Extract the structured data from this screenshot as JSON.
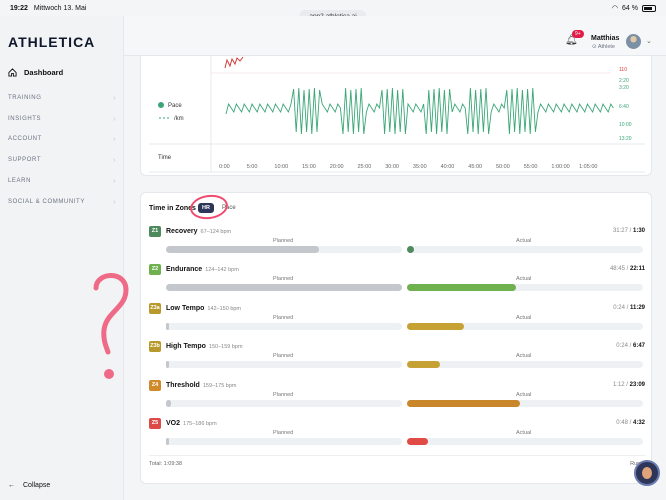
{
  "statusbar": {
    "time": "19:22",
    "date": "Mittwoch 13. Mai",
    "battery": "64 %",
    "url": "app2.athletica.ai"
  },
  "brand": {
    "logo": "ATHLETICA"
  },
  "sidebar": {
    "dashboard": "Dashboard",
    "items": [
      {
        "label": "TRAINING"
      },
      {
        "label": "INSIGHTS"
      },
      {
        "label": "ACCOUNT"
      },
      {
        "label": "SUPPORT"
      },
      {
        "label": "LEARN"
      },
      {
        "label": "SOCIAL & COMMUNITY"
      }
    ],
    "collapse": "Collapse"
  },
  "header": {
    "notifications": "9+",
    "user_name": "Matthias",
    "user_role": "Athlete"
  },
  "pace_chart": {
    "legend_pace": "Pace",
    "legend_unit": "/km",
    "axis_time": "Time",
    "y_ticks": [
      "110",
      "2:20",
      "3:20",
      "6:40",
      "10:00",
      "13:20"
    ],
    "x_ticks": [
      "0:00",
      "5:00",
      "10:00",
      "15:00",
      "20:00",
      "25:00",
      "30:00",
      "35:00",
      "40:00",
      "45:00",
      "50:00",
      "55:00",
      "1:00:00",
      "1:05:00"
    ],
    "colors": {
      "pace": "#3aa676",
      "hr": "#d43b3b"
    }
  },
  "zones": {
    "title": "Time in Zones",
    "tab_hr": "HR",
    "tab_pace": "Pace",
    "planned_label": "Planned",
    "actual_label": "Actual",
    "total": "Total: 1:09:38",
    "runs": "Runs",
    "items": [
      {
        "code": "Z1",
        "name": "Recovery",
        "range": "67–124 bpm",
        "actual_time": "31:27",
        "planned_time": "1:30",
        "color": "#4e8a5e",
        "bar_color": "#4e8a5e",
        "planned_pct": 0.65,
        "actual_pct": 0.03
      },
      {
        "code": "Z2",
        "name": "Endurance",
        "range": "124–142 bpm",
        "actual_time": "48:45",
        "planned_time": "22:11",
        "color": "#6fb14f",
        "bar_color": "#6fb14f",
        "planned_pct": 1.0,
        "actual_pct": 0.46
      },
      {
        "code": "Z3a",
        "name": "Low Tempo",
        "range": "142–150 bpm",
        "actual_time": "0:24",
        "planned_time": "11:29",
        "color": "#b89a2c",
        "bar_color": "#c5a233",
        "planned_pct": 0.005,
        "actual_pct": 0.24
      },
      {
        "code": "Z3b",
        "name": "High Tempo",
        "range": "150–159 bpm",
        "actual_time": "0:24",
        "planned_time": "6:47",
        "color": "#b89a2c",
        "bar_color": "#c5a233",
        "planned_pct": 0.005,
        "actual_pct": 0.14
      },
      {
        "code": "Z4",
        "name": "Threshold",
        "range": "159–175 bpm",
        "actual_time": "1:12",
        "planned_time": "23:09",
        "color": "#d08a2a",
        "bar_color": "#c9862b",
        "planned_pct": 0.02,
        "actual_pct": 0.48
      },
      {
        "code": "Z5",
        "name": "VO2",
        "range": "175–186 bpm",
        "actual_time": "0:48",
        "planned_time": "4:32",
        "color": "#dc4b48",
        "bar_color": "#e04b46",
        "planned_pct": 0.01,
        "actual_pct": 0.09
      }
    ]
  }
}
